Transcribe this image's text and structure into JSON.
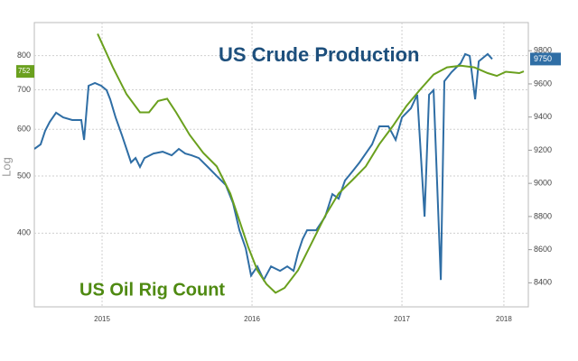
{
  "chart_data": {
    "type": "line",
    "y_label": "Log",
    "log_scale": true,
    "grid": true,
    "xlim": [
      2015.048,
      2018.343
    ],
    "xticks": [
      {
        "value": 2015.5,
        "label": "2015"
      },
      {
        "value": 2016.5,
        "label": "2016"
      },
      {
        "value": 2017.5,
        "label": "2017"
      },
      {
        "value": 2018.18,
        "label": "2018"
      }
    ],
    "ylim": [
      300,
      910
    ],
    "yticks": [
      400,
      500,
      600,
      700,
      800
    ],
    "y2lim": [
      8255,
      9970
    ],
    "y2ticks": [
      8400,
      8600,
      8800,
      9000,
      9200,
      9400,
      9600,
      9800
    ],
    "series": [
      {
        "name": "US Crude Production",
        "color": "#2f6ea5",
        "axis": "y2",
        "x": [
          2015.048,
          2015.09,
          2015.12,
          2015.151,
          2015.193,
          2015.241,
          2015.301,
          2015.361,
          2015.38,
          2015.41,
          2015.452,
          2015.494,
          2015.53,
          2015.554,
          2015.59,
          2015.633,
          2015.663,
          2015.693,
          2015.723,
          2015.753,
          2015.783,
          2015.843,
          2015.904,
          2015.964,
          2016.012,
          2016.054,
          2016.096,
          2016.145,
          2016.205,
          2016.265,
          2016.325,
          2016.373,
          2016.416,
          2016.458,
          2016.494,
          2016.536,
          2016.578,
          2016.627,
          2016.687,
          2016.735,
          2016.777,
          2016.807,
          2016.837,
          2016.867,
          2016.928,
          2016.988,
          2017.036,
          2017.078,
          2017.12,
          2017.169,
          2017.217,
          2017.259,
          2017.301,
          2017.349,
          2017.41,
          2017.458,
          2017.5,
          2017.56,
          2017.602,
          2017.651,
          2017.681,
          2017.711,
          2017.759,
          2017.783,
          2017.831,
          2017.892,
          2017.922,
          2017.952,
          2017.988,
          2018.012,
          2018.072,
          2018.102
        ],
        "values": [
          9208,
          9235,
          9317,
          9371,
          9426,
          9398,
          9382,
          9382,
          9262,
          9589,
          9605,
          9589,
          9562,
          9507,
          9398,
          9289,
          9208,
          9126,
          9153,
          9099,
          9153,
          9180,
          9191,
          9169,
          9208,
          9180,
          9169,
          9153,
          9099,
          9044,
          8990,
          8881,
          8717,
          8608,
          8444,
          8499,
          8417,
          8499,
          8472,
          8499,
          8472,
          8581,
          8663,
          8717,
          8717,
          8799,
          8935,
          8908,
          9017,
          9071,
          9126,
          9180,
          9235,
          9344,
          9344,
          9262,
          9398,
          9453,
          9535,
          8799,
          9535,
          9562,
          8417,
          9616,
          9671,
          9725,
          9780,
          9769,
          9507,
          9736,
          9780,
          9750
        ]
      },
      {
        "name": "US Oil Rig Count",
        "color": "#6aa01e",
        "x": [
          2015.47,
          2015.572,
          2015.663,
          2015.753,
          2015.813,
          2015.873,
          2015.934,
          2015.994,
          2016.084,
          2016.175,
          2016.265,
          2016.355,
          2016.416,
          2016.476,
          2016.536,
          2016.596,
          2016.657,
          2016.717,
          2016.807,
          2016.898,
          2016.988,
          2017.078,
          2017.169,
          2017.259,
          2017.349,
          2017.44,
          2017.53,
          2017.62,
          2017.711,
          2017.801,
          2017.892,
          2017.982,
          2018.072,
          2018.133,
          2018.193,
          2018.283,
          2018.313
        ],
        "values": [
          871,
          764,
          688,
          641,
          641,
          670,
          676,
          641,
          587,
          547,
          519,
          467,
          420,
          378,
          346,
          328,
          317,
          323,
          346,
          385,
          428,
          467,
          492,
          519,
          566,
          608,
          657,
          700,
          743,
          764,
          769,
          764,
          747,
          739,
          751,
          747,
          752
        ]
      }
    ]
  }
}
